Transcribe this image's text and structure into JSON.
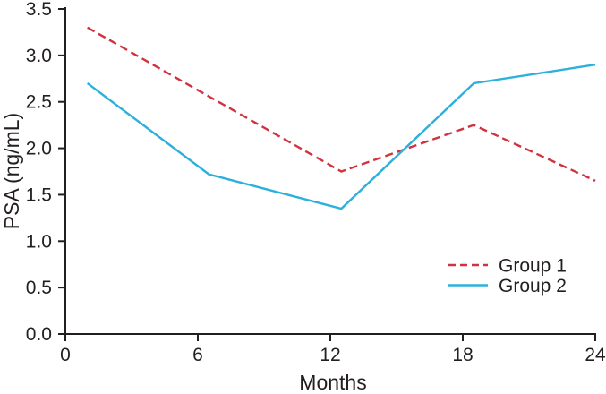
{
  "figure": {
    "background": "#ffffff",
    "axis_color": "#231f20",
    "text_color": "#231f20"
  },
  "chart_data": {
    "type": "line",
    "title": "",
    "xlabel": "Months",
    "ylabel": "PSA (ng/mL)",
    "xlim": [
      0,
      24
    ],
    "ylim": [
      0,
      3.5
    ],
    "x_ticks": [
      "0",
      "6",
      "12",
      "18",
      "24"
    ],
    "y_ticks": [
      "0.0",
      "0.5",
      "1.0",
      "1.5",
      "2.0",
      "2.5",
      "3.0",
      "3.5"
    ],
    "grid": false,
    "legend_position": "lower-right",
    "series": [
      {
        "name": "Group 1",
        "color": "#d0333f",
        "line_style": "dashed",
        "points": [
          [
            1,
            3.3
          ],
          [
            12.5,
            1.75
          ],
          [
            18.5,
            2.25
          ],
          [
            24,
            1.65
          ]
        ]
      },
      {
        "name": "Group 2",
        "color": "#2cb0dc",
        "line_style": "solid",
        "points": [
          [
            1,
            2.7
          ],
          [
            6.5,
            1.72
          ],
          [
            12.5,
            1.35
          ],
          [
            18.5,
            2.7
          ],
          [
            24,
            2.9
          ]
        ]
      }
    ]
  }
}
